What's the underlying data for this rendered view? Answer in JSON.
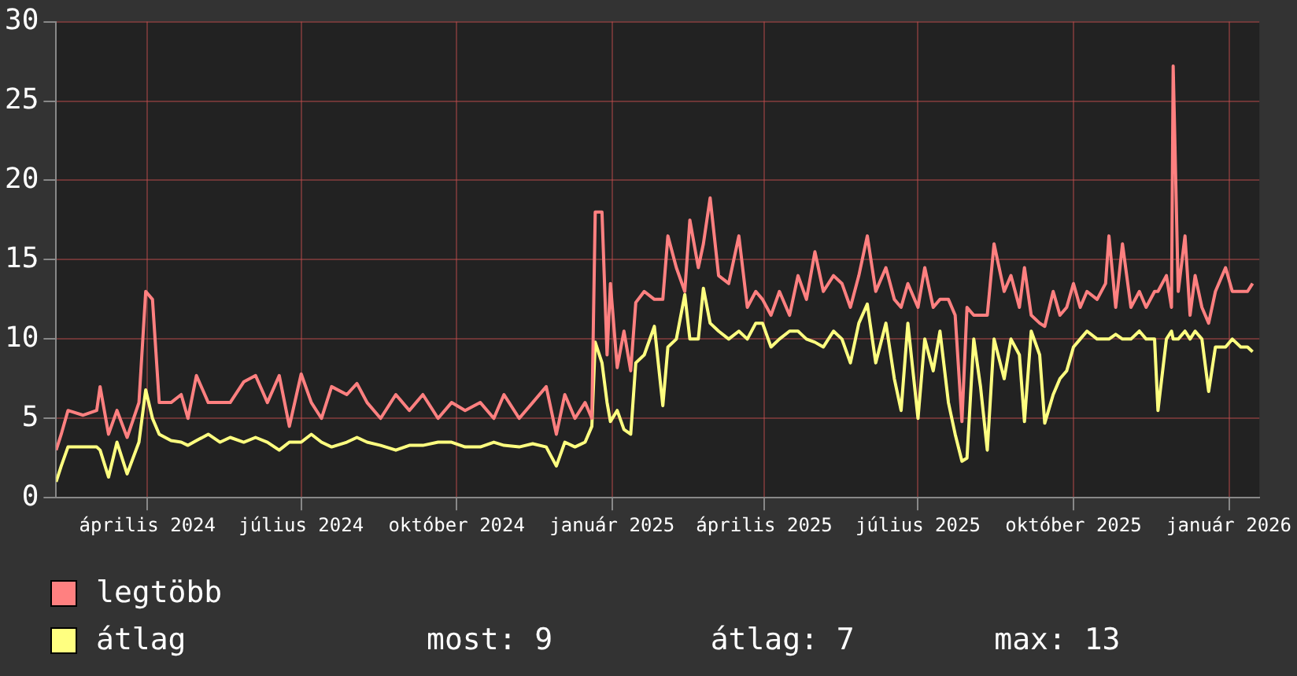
{
  "chart_data": {
    "type": "line",
    "x": [
      "2024-02-07",
      "2024-02-10",
      "2024-02-14",
      "2024-02-23",
      "2024-03-02",
      "2024-03-04",
      "2024-03-09",
      "2024-03-14",
      "2024-03-20",
      "2024-03-27",
      "2024-03-31",
      "2024-04-04",
      "2024-04-08",
      "2024-04-15",
      "2024-04-21",
      "2024-04-25",
      "2024-04-30",
      "2024-05-07",
      "2024-05-14",
      "2024-05-20",
      "2024-05-28",
      "2024-06-04",
      "2024-06-11",
      "2024-06-18",
      "2024-06-24",
      "2024-07-01",
      "2024-07-07",
      "2024-07-13",
      "2024-07-19",
      "2024-07-28",
      "2024-08-03",
      "2024-08-09",
      "2024-08-17",
      "2024-08-26",
      "2024-09-03",
      "2024-09-11",
      "2024-09-20",
      "2024-09-28",
      "2024-10-06",
      "2024-10-15",
      "2024-10-23",
      "2024-10-29",
      "2024-11-07",
      "2024-11-15",
      "2024-11-23",
      "2024-11-29",
      "2024-12-04",
      "2024-12-10",
      "2024-12-16",
      "2024-12-20",
      "2024-12-22",
      "2024-12-26",
      "2024-12-29",
      "2024-12-31",
      "2025-01-04",
      "2025-01-08",
      "2025-01-12",
      "2025-01-15",
      "2025-01-20",
      "2025-01-26",
      "2025-01-31",
      "2025-02-03",
      "2025-02-08",
      "2025-02-13",
      "2025-02-16",
      "2025-02-21",
      "2025-02-24",
      "2025-02-28",
      "2025-03-05",
      "2025-03-11",
      "2025-03-17",
      "2025-03-22",
      "2025-03-27",
      "2025-03-31",
      "2025-04-05",
      "2025-04-10",
      "2025-04-16",
      "2025-04-21",
      "2025-04-26",
      "2025-05-01",
      "2025-05-06",
      "2025-05-12",
      "2025-05-17",
      "2025-05-22",
      "2025-05-27",
      "2025-06-01",
      "2025-06-06",
      "2025-06-12",
      "2025-06-17",
      "2025-06-21",
      "2025-06-25",
      "2025-07-01",
      "2025-07-05",
      "2025-07-10",
      "2025-07-14",
      "2025-07-19",
      "2025-07-23",
      "2025-07-27",
      "2025-07-30",
      "2025-08-03",
      "2025-08-07",
      "2025-08-11",
      "2025-08-15",
      "2025-08-21",
      "2025-08-25",
      "2025-08-30",
      "2025-09-02",
      "2025-09-06",
      "2025-09-11",
      "2025-09-14",
      "2025-09-19",
      "2025-09-23",
      "2025-09-27",
      "2025-10-01",
      "2025-10-05",
      "2025-10-09",
      "2025-10-15",
      "2025-10-20",
      "2025-10-22",
      "2025-10-26",
      "2025-10-30",
      "2025-11-04",
      "2025-11-09",
      "2025-11-13",
      "2025-11-18",
      "2025-11-20",
      "2025-11-25",
      "2025-11-28",
      "2025-11-29",
      "2025-12-02",
      "2025-12-06",
      "2025-12-09",
      "2025-12-12",
      "2025-12-16",
      "2025-12-20",
      "2025-12-24",
      "2025-12-30",
      "2026-01-03",
      "2026-01-08",
      "2026-01-12",
      "2026-01-15"
    ],
    "series": [
      {
        "name": "legtöbb",
        "color": "#ff8080",
        "values": [
          3,
          4,
          5.5,
          5.2,
          5.5,
          7,
          4,
          5.5,
          3.8,
          6,
          13,
          12.5,
          6,
          6,
          6.5,
          5,
          7.7,
          6,
          6,
          6,
          7.3,
          7.7,
          6,
          7.7,
          4.5,
          7.8,
          6,
          5,
          7,
          6.5,
          7.2,
          6,
          5,
          6.5,
          5.5,
          6.5,
          5,
          6,
          5.5,
          6,
          5,
          6.5,
          5,
          6,
          7,
          4,
          6.5,
          5,
          6,
          5,
          18,
          18,
          9,
          13.5,
          8.2,
          10.5,
          8,
          12.3,
          13,
          12.5,
          12.5,
          16.5,
          14.5,
          13,
          17.5,
          14.5,
          16,
          18.9,
          14,
          13.5,
          16.5,
          12,
          13,
          12.5,
          11.5,
          13,
          11.5,
          14,
          12.5,
          15.5,
          13,
          14,
          13.5,
          12,
          14,
          16.5,
          13,
          14.5,
          12.5,
          12,
          13.5,
          12,
          14.5,
          12,
          12.5,
          12.5,
          11.5,
          4.8,
          12,
          11.5,
          11.5,
          11.5,
          16,
          13,
          14,
          12,
          14.5,
          11.5,
          11,
          10.8,
          13,
          11.5,
          12,
          13.5,
          12,
          13,
          12.5,
          13.5,
          16.5,
          12,
          16,
          12,
          13,
          12,
          13,
          13,
          14,
          12,
          27.2,
          13,
          16.5,
          11.5,
          14,
          12,
          11,
          13,
          14.5,
          13,
          13,
          13,
          13.5
        ]
      },
      {
        "name": "átlag",
        "color": "#ffff80",
        "values": [
          1,
          2,
          3.2,
          3.2,
          3.2,
          3,
          1.3,
          3.5,
          1.5,
          3.5,
          6.8,
          5,
          4,
          3.6,
          3.5,
          3.3,
          3.6,
          4,
          3.5,
          3.8,
          3.5,
          3.8,
          3.5,
          3,
          3.5,
          3.5,
          4,
          3.5,
          3.2,
          3.5,
          3.8,
          3.5,
          3.3,
          3,
          3.3,
          3.3,
          3.5,
          3.5,
          3.2,
          3.2,
          3.5,
          3.3,
          3.2,
          3.4,
          3.2,
          2,
          3.5,
          3.2,
          3.5,
          4.5,
          9.8,
          8.5,
          6,
          4.8,
          5.5,
          4.3,
          4,
          8.5,
          9,
          10.8,
          5.8,
          9.5,
          10,
          12.8,
          10,
          10,
          13.2,
          11,
          10.5,
          10,
          10.5,
          10,
          11,
          11,
          9.5,
          10,
          10.5,
          10.5,
          10,
          9.8,
          9.5,
          10.5,
          10,
          8.5,
          11,
          12.2,
          8.5,
          11,
          7.5,
          5.5,
          11,
          5,
          10,
          8,
          10.5,
          6,
          4,
          2.3,
          2.5,
          10,
          7,
          3,
          10,
          7.5,
          10,
          9,
          4.8,
          10.5,
          9,
          4.7,
          6.5,
          7.5,
          8,
          9.5,
          10,
          10.5,
          10,
          10,
          10,
          10.3,
          10,
          10,
          10.5,
          10,
          10,
          5.5,
          10,
          10.5,
          10,
          10,
          10.5,
          10,
          10.5,
          10,
          6.7,
          9.5,
          9.5,
          10,
          9.5,
          9.5,
          9.2
        ]
      }
    ],
    "xlim": [
      "2024-02-07",
      "2026-01-19"
    ],
    "xticks": [
      {
        "value": "2024-04-01",
        "label": "április 2024"
      },
      {
        "value": "2024-07-01",
        "label": "július 2024"
      },
      {
        "value": "2024-10-01",
        "label": "október 2024"
      },
      {
        "value": "2025-01-01",
        "label": "január 2025"
      },
      {
        "value": "2025-04-01",
        "label": "április 2025"
      },
      {
        "value": "2025-07-01",
        "label": "július 2025"
      },
      {
        "value": "2025-10-01",
        "label": "október 2025"
      },
      {
        "value": "2026-01-01",
        "label": "január 2026"
      }
    ],
    "ylim": [
      0,
      30
    ],
    "yticks": [
      0,
      5,
      10,
      15,
      20,
      25,
      30
    ],
    "grid": true,
    "legend": "bottom",
    "marker": "none",
    "line_style": "solid",
    "annotations": [
      "most: 9",
      "átlag: 7",
      "max: 13"
    ]
  }
}
